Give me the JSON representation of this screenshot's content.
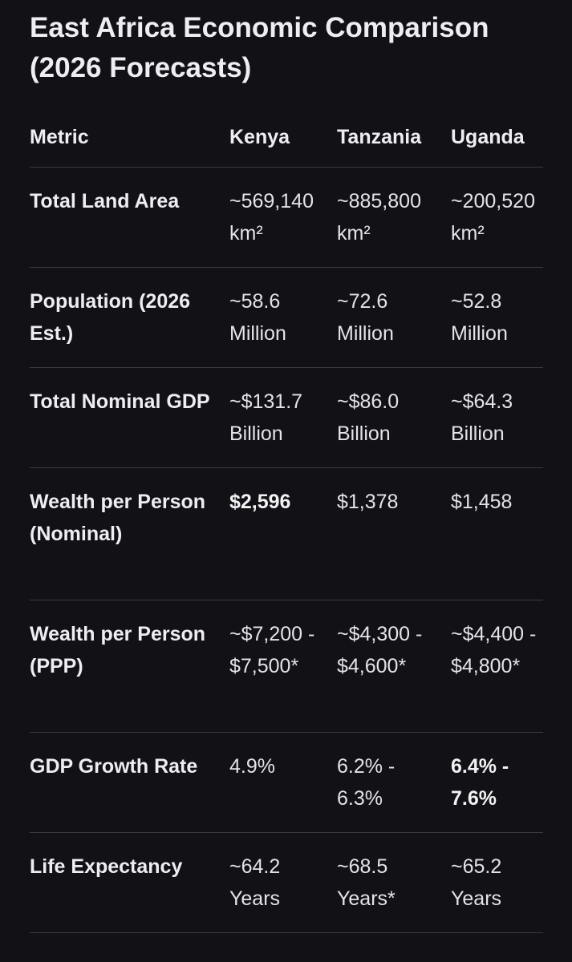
{
  "title": "East Africa Economic Comparison (2026 Forecasts)",
  "table": {
    "headers": [
      "Metric",
      "Kenya",
      "Tanzania",
      "Uganda"
    ],
    "rows": [
      {
        "metric": "Total Land Area",
        "kenya": "~569,140 km²",
        "tanzania": "~885,800 km²",
        "uganda": "~200,520 km²"
      },
      {
        "metric": "Population (2026 Est.)",
        "kenya": "~58.6 Million",
        "tanzania": "~72.6 Million",
        "uganda": "~52.8 Million"
      },
      {
        "metric": "Total Nominal GDP",
        "kenya": "~$131.7 Billion",
        "tanzania": "~$86.0 Billion",
        "uganda": "~$64.3 Billion"
      },
      {
        "metric": "Wealth per Person (Nominal)",
        "kenya": "$2,596",
        "tanzania": "$1,378",
        "uganda": "$1,458"
      },
      {
        "metric": "Wealth per Person (PPP)",
        "kenya": "~$7,200 - $7,500*",
        "tanzania": "~$4,300 - $4,600*",
        "uganda": "~$4,400 - $4,800*"
      },
      {
        "metric": "GDP Growth Rate",
        "kenya": "4.9%",
        "tanzania": "6.2% - 6.3%",
        "uganda": "6.4% - 7.6%"
      },
      {
        "metric": "Life Expectancy",
        "kenya": "~64.2 Years",
        "tanzania": "~68.5 Years*",
        "uganda": "~65.2 Years"
      }
    ]
  }
}
